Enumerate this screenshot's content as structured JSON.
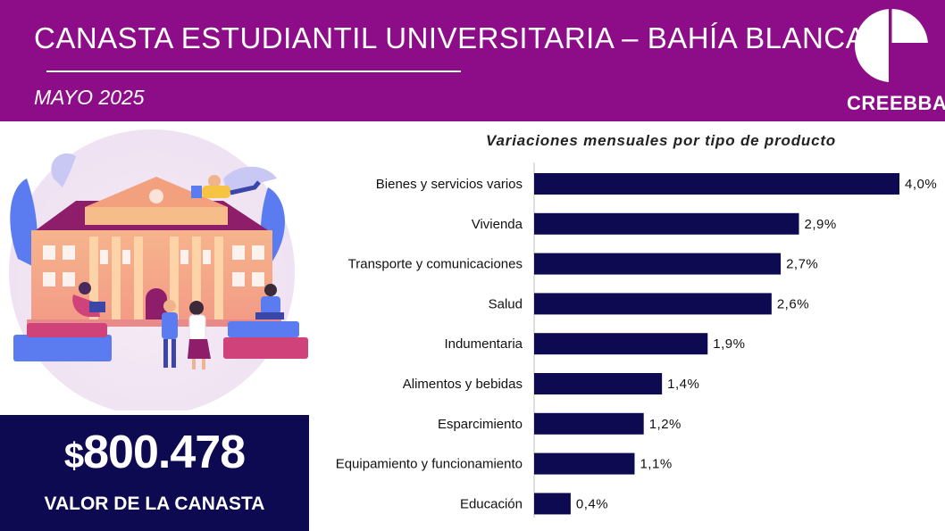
{
  "header": {
    "title": "CANASTA ESTUDIANTIL UNIVERSITARIA – BAHÍA BLANCA",
    "subtitle": "MAYO 2025",
    "logo_text": "CREEBBA"
  },
  "summary": {
    "currency": "$",
    "value": "800.478",
    "label": "VALOR DE LA CANASTA"
  },
  "colors": {
    "header": "#8d0c87",
    "bar": "#0e0a52",
    "price_box": "#0e0a52"
  },
  "icons": [
    "creebba-logo-icon",
    "university-building-illustration"
  ],
  "chart_data": {
    "type": "bar",
    "orientation": "horizontal",
    "title": "Variaciones mensuales por tipo de producto",
    "categories": [
      "Bienes y servicios varios",
      "Vivienda",
      "Transporte y comunicaciones",
      "Salud",
      "Indumentaria",
      "Alimentos y bebidas",
      "Esparcimiento",
      "Equipamiento y funcionamiento",
      "Educación"
    ],
    "values": [
      4.0,
      2.9,
      2.7,
      2.6,
      1.9,
      1.4,
      1.2,
      1.1,
      0.4
    ],
    "value_labels": [
      "4,0%",
      "2,9%",
      "2,7%",
      "2,6%",
      "1,9%",
      "1,4%",
      "1,2%",
      "1,1%",
      "0,4%"
    ],
    "xlim": [
      0,
      4.0
    ],
    "grid": false
  }
}
